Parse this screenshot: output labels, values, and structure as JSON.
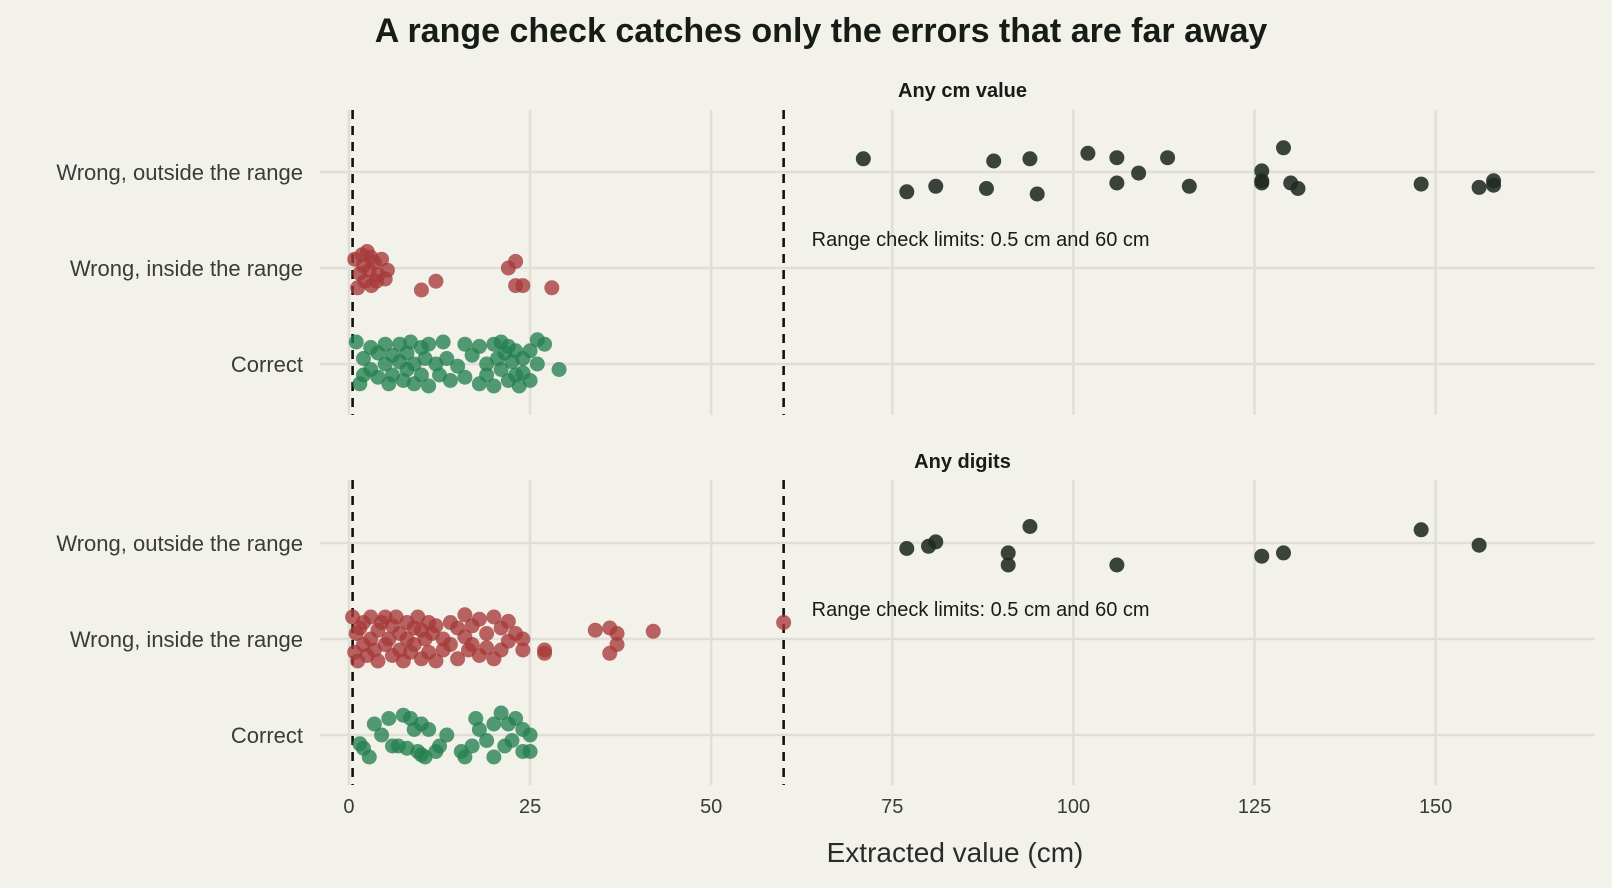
{
  "chart_data": {
    "type": "scatter",
    "title": "A range check catches only the errors that are far away",
    "xlabel": "Extracted value (cm)",
    "xlim": [
      -4,
      172
    ],
    "xticks": [
      0,
      25,
      50,
      75,
      100,
      125,
      150
    ],
    "categories": [
      "Wrong, outside the range",
      "Wrong, inside the range",
      "Correct"
    ],
    "colors": {
      "Wrong, outside the range": "#1f2a22",
      "Wrong, inside the range": "#a63a3a",
      "Correct": "#24804f"
    },
    "reference_lines": [
      0.5,
      60
    ],
    "grid": true,
    "panels": [
      {
        "title": "Any cm value",
        "annotation": "Range check limits: 0.5 cm and 60 cm",
        "series": [
          {
            "category": "Wrong, outside the range",
            "points": [
              [
                71,
                0.12
              ],
              [
                77,
                -0.18
              ],
              [
                81,
                -0.13
              ],
              [
                88,
                -0.15
              ],
              [
                89,
                0.1
              ],
              [
                94,
                0.12
              ],
              [
                95,
                -0.2
              ],
              [
                102,
                0.17
              ],
              [
                106,
                0.13
              ],
              [
                106,
                -0.1
              ],
              [
                109,
                -0.01
              ],
              [
                113,
                0.13
              ],
              [
                116,
                -0.13
              ],
              [
                126,
                0.01
              ],
              [
                126,
                -0.08
              ],
              [
                126,
                -0.1
              ],
              [
                129,
                0.22
              ],
              [
                130,
                -0.1
              ],
              [
                131,
                -0.15
              ],
              [
                148,
                -0.11
              ],
              [
                156,
                -0.14
              ],
              [
                158,
                -0.08
              ],
              [
                158,
                -0.12
              ]
            ]
          },
          {
            "category": "Wrong, inside the range",
            "points": [
              [
                0.8,
                0.08
              ],
              [
                1.2,
                -0.18
              ],
              [
                1.5,
                -0.05
              ],
              [
                1.8,
                0.12
              ],
              [
                2,
                0.02
              ],
              [
                2.2,
                -0.12
              ],
              [
                2.5,
                0.15
              ],
              [
                2.8,
                -0.02
              ],
              [
                3,
                0.1
              ],
              [
                3.1,
                -0.16
              ],
              [
                3.5,
                0.05
              ],
              [
                3.8,
                -0.12
              ],
              [
                4,
                -0.06
              ],
              [
                4.5,
                0.08
              ],
              [
                5,
                -0.1
              ],
              [
                5.3,
                -0.02
              ],
              [
                10,
                -0.2
              ],
              [
                12,
                -0.12
              ],
              [
                22,
                0.0
              ],
              [
                23,
                0.06
              ],
              [
                23,
                -0.16
              ],
              [
                24,
                -0.16
              ],
              [
                28,
                -0.18
              ]
            ]
          },
          {
            "category": "Correct",
            "points": [
              [
                1,
                0.2
              ],
              [
                1.5,
                -0.18
              ],
              [
                2,
                0.05
              ],
              [
                2,
                -0.1
              ],
              [
                3,
                0.15
              ],
              [
                3,
                -0.05
              ],
              [
                4,
                0.1
              ],
              [
                4,
                -0.12
              ],
              [
                5,
                0.18
              ],
              [
                5,
                0.0
              ],
              [
                5.5,
                -0.18
              ],
              [
                6,
                0.08
              ],
              [
                6,
                -0.1
              ],
              [
                7,
                0.18
              ],
              [
                7,
                0.02
              ],
              [
                7.5,
                -0.15
              ],
              [
                8,
                0.1
              ],
              [
                8,
                -0.05
              ],
              [
                8.5,
                0.2
              ],
              [
                9,
                0.0
              ],
              [
                9,
                -0.18
              ],
              [
                10,
                0.15
              ],
              [
                10,
                -0.1
              ],
              [
                10.5,
                0.05
              ],
              [
                11,
                -0.2
              ],
              [
                11,
                0.18
              ],
              [
                12,
                0.0
              ],
              [
                12.5,
                -0.1
              ],
              [
                13,
                0.2
              ],
              [
                13.5,
                0.05
              ],
              [
                14,
                -0.15
              ],
              [
                15,
                -0.02
              ],
              [
                16,
                -0.12
              ],
              [
                16,
                0.18
              ],
              [
                17,
                0.08
              ],
              [
                18,
                -0.18
              ],
              [
                18,
                0.16
              ],
              [
                19,
                0.0
              ],
              [
                19,
                -0.1
              ],
              [
                20,
                0.18
              ],
              [
                20,
                -0.2
              ],
              [
                20.5,
                0.05
              ],
              [
                21,
                0.2
              ],
              [
                21,
                -0.05
              ],
              [
                21.5,
                0.1
              ],
              [
                22,
                -0.15
              ],
              [
                22,
                0.16
              ],
              [
                22.5,
                0.02
              ],
              [
                23,
                -0.1
              ],
              [
                23,
                0.12
              ],
              [
                23.5,
                -0.2
              ],
              [
                24,
                0.05
              ],
              [
                24,
                -0.08
              ],
              [
                25,
                0.12
              ],
              [
                25,
                -0.15
              ],
              [
                26,
                0.22
              ],
              [
                26,
                0.0
              ],
              [
                27,
                0.18
              ],
              [
                29,
                -0.05
              ]
            ]
          }
        ]
      },
      {
        "title": "Any digits",
        "annotation": "Range check limits: 0.5 cm and 60 cm",
        "series": [
          {
            "category": "Wrong, outside the range",
            "points": [
              [
                77,
                -0.05
              ],
              [
                80,
                -0.03
              ],
              [
                81,
                0.01
              ],
              [
                91,
                -0.09
              ],
              [
                91,
                -0.2
              ],
              [
                94,
                0.15
              ],
              [
                106,
                -0.2
              ],
              [
                126,
                -0.12
              ],
              [
                129,
                -0.09
              ],
              [
                148,
                0.12
              ],
              [
                156,
                -0.02
              ]
            ]
          },
          {
            "category": "Wrong, inside the range",
            "points": [
              [
                0.5,
                0.2
              ],
              [
                0.8,
                -0.12
              ],
              [
                1,
                0.05
              ],
              [
                1.2,
                -0.2
              ],
              [
                1.5,
                0.1
              ],
              [
                2,
                -0.05
              ],
              [
                2,
                0.15
              ],
              [
                2.5,
                -0.15
              ],
              [
                3,
                0.0
              ],
              [
                3,
                0.2
              ],
              [
                3.5,
                -0.1
              ],
              [
                4,
                0.08
              ],
              [
                4,
                -0.2
              ],
              [
                4.5,
                0.15
              ],
              [
                5,
                -0.05
              ],
              [
                5,
                0.2
              ],
              [
                5.5,
                0.0
              ],
              [
                6,
                -0.15
              ],
              [
                6,
                0.12
              ],
              [
                6.5,
                0.2
              ],
              [
                7,
                -0.1
              ],
              [
                7,
                0.05
              ],
              [
                7.5,
                -0.2
              ],
              [
                8,
                0.15
              ],
              [
                8,
                0.0
              ],
              [
                8.5,
                -0.12
              ],
              [
                9,
                0.1
              ],
              [
                9,
                -0.05
              ],
              [
                9.5,
                0.2
              ],
              [
                10,
                -0.18
              ],
              [
                10,
                0.08
              ],
              [
                10.5,
                0.0
              ],
              [
                11,
                0.15
              ],
              [
                11,
                -0.12
              ],
              [
                11.5,
                0.05
              ],
              [
                12,
                -0.2
              ],
              [
                12,
                0.12
              ],
              [
                13,
                0.0
              ],
              [
                13,
                -0.1
              ],
              [
                14,
                0.15
              ],
              [
                14,
                -0.05
              ],
              [
                15,
                0.1
              ],
              [
                15,
                -0.18
              ],
              [
                16,
                0.02
              ],
              [
                16,
                0.22
              ],
              [
                16.5,
                -0.1
              ],
              [
                17,
                0.12
              ],
              [
                17,
                -0.05
              ],
              [
                18,
                0.18
              ],
              [
                18,
                -0.15
              ],
              [
                19,
                0.05
              ],
              [
                19,
                -0.08
              ],
              [
                20,
                0.2
              ],
              [
                20,
                -0.18
              ],
              [
                21,
                0.1
              ],
              [
                21,
                -0.1
              ],
              [
                22,
                0.16
              ],
              [
                22,
                -0.02
              ],
              [
                23,
                0.05
              ],
              [
                24,
                -0.1
              ],
              [
                24,
                0.0
              ],
              [
                27,
                -0.1
              ],
              [
                27,
                -0.13
              ],
              [
                34,
                0.08
              ],
              [
                36,
                0.1
              ],
              [
                36,
                -0.13
              ],
              [
                37,
                0.05
              ],
              [
                37,
                -0.05
              ],
              [
                42,
                0.07
              ],
              [
                60,
                0.15
              ]
            ]
          },
          {
            "category": "Correct",
            "points": [
              [
                1.5,
                -0.08
              ],
              [
                2,
                -0.12
              ],
              [
                2.8,
                -0.2
              ],
              [
                3.5,
                0.1
              ],
              [
                4.5,
                0.0
              ],
              [
                5.5,
                0.15
              ],
              [
                6,
                -0.1
              ],
              [
                6.8,
                -0.1
              ],
              [
                7.5,
                0.18
              ],
              [
                8,
                -0.12
              ],
              [
                8.5,
                0.15
              ],
              [
                9,
                0.05
              ],
              [
                9.5,
                -0.15
              ],
              [
                10,
                0.1
              ],
              [
                10,
                -0.18
              ],
              [
                10.5,
                -0.2
              ],
              [
                11,
                0.05
              ],
              [
                12,
                -0.15
              ],
              [
                12.5,
                -0.1
              ],
              [
                13.5,
                0.0
              ],
              [
                15.5,
                -0.15
              ],
              [
                16,
                -0.2
              ],
              [
                17,
                -0.1
              ],
              [
                17.5,
                0.15
              ],
              [
                18,
                0.05
              ],
              [
                19,
                -0.05
              ],
              [
                20,
                -0.2
              ],
              [
                20,
                0.1
              ],
              [
                21,
                0.2
              ],
              [
                21.5,
                -0.1
              ],
              [
                22,
                0.1
              ],
              [
                22.5,
                -0.05
              ],
              [
                23,
                0.15
              ],
              [
                24,
                -0.15
              ],
              [
                24,
                0.05
              ],
              [
                25,
                -0.15
              ],
              [
                25,
                0.0
              ]
            ]
          }
        ]
      }
    ]
  }
}
